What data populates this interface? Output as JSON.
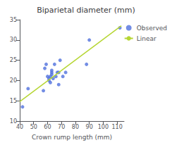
{
  "chart_data": {
    "type": "scatter",
    "title": "Biparietal diameter (mm)",
    "xlabel": "Crown rump length (mm)",
    "xlim": [
      40,
      115
    ],
    "ylim": [
      10,
      35
    ],
    "xticks": [
      40,
      50,
      60,
      70,
      80,
      90,
      100,
      110
    ],
    "yticks": [
      10,
      15,
      20,
      25,
      30,
      35
    ],
    "grid": false,
    "legend": "right",
    "series": [
      {
        "name": "Observed",
        "type": "scatter",
        "marker": "circle",
        "x": [
          42,
          46,
          57,
          58,
          59,
          60,
          61,
          61,
          62,
          62,
          63,
          63,
          63,
          64,
          65,
          66,
          67,
          68,
          68,
          69,
          71,
          73,
          88,
          90,
          112
        ],
        "values": [
          13.5,
          18,
          17.5,
          23,
          24,
          21,
          20.5,
          20,
          19.5,
          21,
          21.5,
          22,
          22.5,
          20.5,
          24,
          21,
          22,
          22,
          19,
          25,
          21,
          22,
          24,
          30,
          33
        ]
      },
      {
        "name": "Linear",
        "type": "line",
        "line_style": "solid",
        "x": [
          40,
          113
        ],
        "values": [
          14.8,
          33.5
        ]
      }
    ]
  }
}
